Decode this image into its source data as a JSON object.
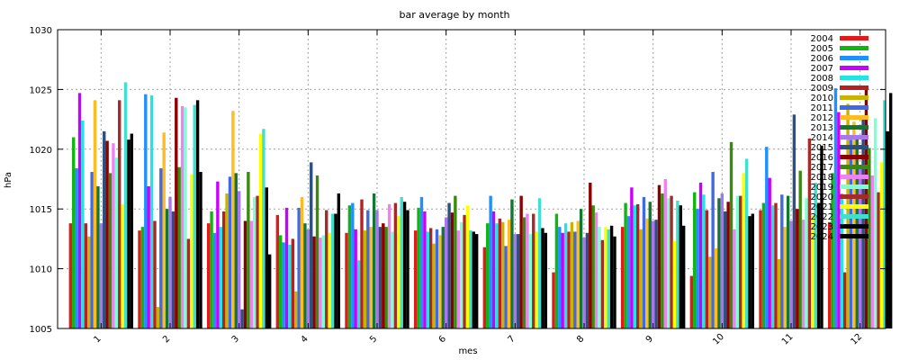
{
  "chart_data": {
    "type": "bar",
    "title": "bar average by month",
    "xlabel": "mes",
    "ylabel": "hPa",
    "ylim": [
      1005,
      1030
    ],
    "yticks": [
      "1005",
      "1010",
      "1015",
      "1020",
      "1025",
      "1030"
    ],
    "grid": true,
    "legend_position": "top-right",
    "categories": [
      "1",
      "2",
      "3",
      "4",
      "5",
      "6",
      "7",
      "8",
      "9",
      "10",
      "11",
      "12"
    ],
    "series": [
      {
        "name": "2004",
        "color": "#e11a1a",
        "values": [
          1013.8,
          1013.2,
          1013.8,
          1014.5,
          1013.0,
          1013.2,
          1011.8,
          1009.7,
          1013.5,
          1009.4,
          1014.9,
          1013.9
        ]
      },
      {
        "name": "2005",
        "color": "#11b411",
        "values": [
          1021.0,
          1013.5,
          1014.8,
          1012.8,
          1015.3,
          1015.1,
          1013.8,
          1014.6,
          1015.5,
          1016.4,
          1015.5,
          1018.0
        ]
      },
      {
        "name": "2006",
        "color": "#1e90ff",
        "values": [
          1018.4,
          1024.6,
          1013.0,
          1012.2,
          1015.5,
          1016.0,
          1016.1,
          1013.5,
          1014.4,
          1015.0,
          1020.2,
          1025.1
        ]
      },
      {
        "name": "2007",
        "color": "#c800ff",
        "values": [
          1024.7,
          1016.9,
          1017.3,
          1015.1,
          1013.3,
          1014.8,
          1014.8,
          1013.0,
          1016.8,
          1017.2,
          1017.6,
          1023.1
        ]
      },
      {
        "name": "2008",
        "color": "#22e4e4",
        "values": [
          1022.4,
          1024.5,
          1013.5,
          1012.0,
          1010.7,
          1013.1,
          1013.8,
          1013.8,
          1015.3,
          1016.2,
          1015.3,
          1016.3
        ]
      },
      {
        "name": "2009",
        "color": "#b22222",
        "values": [
          1013.8,
          1014.0,
          1014.8,
          1012.5,
          1015.8,
          1013.4,
          1014.2,
          1013.1,
          1015.4,
          1014.9,
          1015.5,
          1009.7
        ]
      },
      {
        "name": "2010",
        "color": "#c8b400",
        "values": [
          1012.7,
          1006.8,
          1016.3,
          1008.1,
          1013.2,
          1012.1,
          1013.9,
          1013.9,
          1013.3,
          1011.0,
          1010.8,
          1023.8
        ]
      },
      {
        "name": "2011",
        "color": "#4169e1",
        "values": [
          1018.1,
          1018.4,
          1017.7,
          1015.1,
          1014.9,
          1013.3,
          1011.9,
          1013.1,
          1016.0,
          1018.1,
          1016.2,
          1020.8
        ]
      },
      {
        "name": "2012",
        "color": "#ffbb22",
        "values": [
          1024.1,
          1021.4,
          1023.2,
          1016.0,
          1013.5,
          1012.8,
          1014.1,
          1014.0,
          1014.2,
          1011.7,
          1013.5,
          1022.3
        ]
      },
      {
        "name": "2013",
        "color": "#117733",
        "values": [
          1016.9,
          1015.0,
          1018.0,
          1013.8,
          1016.3,
          1013.5,
          1015.8,
          1015.0,
          1015.6,
          1015.9,
          1016.1,
          1021.0
        ]
      },
      {
        "name": "2014",
        "color": "#a877ee",
        "values": [
          1013.8,
          1016.0,
          1016.5,
          1013.3,
          1014.9,
          1014.3,
          1012.9,
          1012.6,
          1014.0,
          1016.3,
          1014.0,
          1018.5
        ]
      },
      {
        "name": "2015",
        "color": "#2f4f7f",
        "values": [
          1021.5,
          1014.8,
          1006.6,
          1018.9,
          1013.5,
          1015.5,
          1012.9,
          1013.0,
          1014.1,
          1014.8,
          1022.9,
          1022.7
        ]
      },
      {
        "name": "2016",
        "color": "#8b0000",
        "values": [
          1020.7,
          1024.3,
          1014.0,
          1012.7,
          1013.8,
          1014.7,
          1016.1,
          1017.2,
          1017.0,
          1015.6,
          1015.0,
          1025.3
        ]
      },
      {
        "name": "2017",
        "color": "#3a8a10",
        "values": [
          1018.0,
          1018.5,
          1018.1,
          1017.8,
          1013.5,
          1016.1,
          1014.3,
          1015.3,
          1016.3,
          1020.6,
          1018.2,
          1020.1
        ]
      },
      {
        "name": "2018",
        "color": "#ee82ee",
        "values": [
          1020.5,
          1023.6,
          1014.0,
          1012.6,
          1015.4,
          1013.2,
          1014.6,
          1014.7,
          1017.5,
          1013.3,
          1014.1,
          1017.8
        ]
      },
      {
        "name": "2019",
        "color": "#7fffd4",
        "values": [
          1019.3,
          1023.5,
          1016.0,
          1012.8,
          1013.1,
          1013.9,
          1012.9,
          1013.5,
          1015.9,
          1016.1,
          1015.9,
          1022.6
        ]
      },
      {
        "name": "2020",
        "color": "#a52a2a",
        "values": [
          1024.1,
          1012.5,
          1016.1,
          1014.9,
          1015.5,
          1014.5,
          1014.6,
          1012.4,
          1016.1,
          1016.1,
          1020.9,
          1016.4
        ]
      },
      {
        "name": "2021",
        "color": "#ffff00",
        "values": [
          1015.4,
          1017.9,
          1021.3,
          1013.0,
          1014.4,
          1015.3,
          1013.1,
          1013.5,
          1012.3,
          1018.0,
          1014.5,
          1018.9
        ]
      },
      {
        "name": "2022",
        "color": "#40e0d0",
        "values": [
          1025.6,
          1023.7,
          1021.7,
          1014.6,
          1016.0,
          1013.2,
          1015.9,
          1013.3,
          1015.7,
          1019.2,
          1017.2,
          1024.1
        ]
      },
      {
        "name": "2023",
        "color": "#000000",
        "values": [
          1020.8,
          1024.1,
          1016.8,
          1014.6,
          1015.6,
          1013.1,
          1013.4,
          1013.6,
          1015.3,
          1014.4,
          1015.5,
          1021.5
        ]
      },
      {
        "name": "2024",
        "color": "#000000",
        "values": [
          1021.3,
          1018.1,
          1011.2,
          1016.3,
          1014.9,
          1012.9,
          1013.0,
          1012.7,
          1013.6,
          1014.6,
          1020.3,
          1024.7
        ]
      }
    ]
  }
}
